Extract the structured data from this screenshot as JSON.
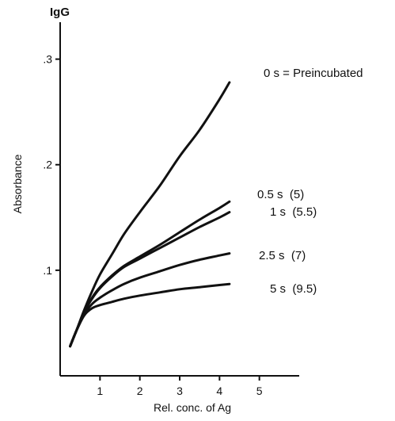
{
  "chart_data": {
    "type": "line",
    "title": "IgG",
    "xlabel": "Rel. conc. of Ag",
    "ylabel": "Absorbance",
    "xlim": [
      0,
      6
    ],
    "ylim": [
      0,
      0.335
    ],
    "x_ticks": [
      1,
      2,
      3,
      4,
      5
    ],
    "x_tick_labels": [
      "1",
      "2",
      "3",
      "4",
      "5"
    ],
    "y_ticks": [
      0.1,
      0.2,
      0.3
    ],
    "y_tick_labels": [
      ".1",
      ".2",
      ".3"
    ],
    "grid": false,
    "legend": "inline labels at right end of each curve",
    "line_color": "#111111",
    "series": [
      {
        "name": "0 s = Preincubated",
        "x": [
          0.25,
          0.4,
          0.6,
          0.8,
          1.0,
          1.3,
          1.6,
          2.0,
          2.5,
          3.0,
          3.5,
          4.0,
          4.25
        ],
        "y": [
          0.028,
          0.042,
          0.062,
          0.08,
          0.096,
          0.115,
          0.134,
          0.155,
          0.18,
          0.208,
          0.233,
          0.262,
          0.278
        ]
      },
      {
        "name": "0.5 s  (5)",
        "x": [
          0.25,
          0.4,
          0.6,
          0.8,
          1.0,
          1.3,
          1.6,
          2.0,
          2.5,
          3.0,
          3.5,
          4.0,
          4.25
        ],
        "y": [
          0.028,
          0.042,
          0.06,
          0.074,
          0.084,
          0.095,
          0.104,
          0.113,
          0.124,
          0.136,
          0.148,
          0.159,
          0.165
        ]
      },
      {
        "name": "1 s  (5.5)",
        "x": [
          0.25,
          0.4,
          0.6,
          0.8,
          1.0,
          1.3,
          1.6,
          2.0,
          2.5,
          3.0,
          3.5,
          4.0,
          4.25
        ],
        "y": [
          0.028,
          0.042,
          0.06,
          0.073,
          0.083,
          0.094,
          0.103,
          0.111,
          0.121,
          0.131,
          0.141,
          0.15,
          0.155
        ]
      },
      {
        "name": "2.5 s  (7)",
        "x": [
          0.25,
          0.4,
          0.6,
          0.8,
          1.0,
          1.3,
          1.6,
          2.0,
          2.5,
          3.0,
          3.5,
          4.0,
          4.25
        ],
        "y": [
          0.028,
          0.042,
          0.058,
          0.068,
          0.074,
          0.081,
          0.087,
          0.093,
          0.099,
          0.105,
          0.11,
          0.114,
          0.116
        ]
      },
      {
        "name": "5 s  (9.5)",
        "x": [
          0.25,
          0.4,
          0.6,
          0.8,
          1.0,
          1.3,
          1.6,
          2.0,
          2.5,
          3.0,
          3.5,
          4.0,
          4.25
        ],
        "y": [
          0.028,
          0.042,
          0.057,
          0.064,
          0.067,
          0.07,
          0.073,
          0.076,
          0.079,
          0.082,
          0.084,
          0.086,
          0.087
        ]
      }
    ]
  }
}
